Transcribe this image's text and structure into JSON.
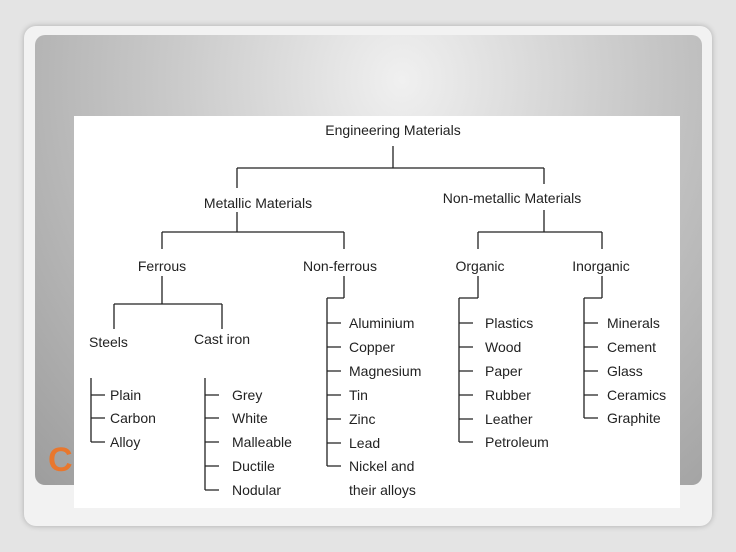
{
  "slide": {
    "title": "C"
  },
  "diagram": {
    "root": "Engineering Materials",
    "metallic": {
      "label": "Metallic Materials",
      "ferrous": {
        "label": "Ferrous",
        "steels": {
          "label": "Steels",
          "items": [
            "Plain",
            "Carbon",
            "Alloy"
          ]
        },
        "cast_iron": {
          "label": "Cast iron",
          "items": [
            "Grey",
            "White",
            "Malleable",
            "Ductile",
            "Nodular"
          ]
        }
      },
      "non_ferrous": {
        "label": "Non-ferrous",
        "items": [
          "Aluminium",
          "Copper",
          "Magnesium",
          "Tin",
          "Zinc",
          "Lead",
          "Nickel and",
          "their alloys"
        ]
      }
    },
    "non_metallic": {
      "label": "Non-metallic Materials",
      "organic": {
        "label": "Organic",
        "items": [
          "Plastics",
          "Wood",
          "Paper",
          "Rubber",
          "Leather",
          "Petroleum"
        ]
      },
      "inorganic": {
        "label": "Inorganic",
        "items": [
          "Minerals",
          "Cement",
          "Glass",
          "Ceramics",
          "Graphite"
        ]
      }
    }
  }
}
